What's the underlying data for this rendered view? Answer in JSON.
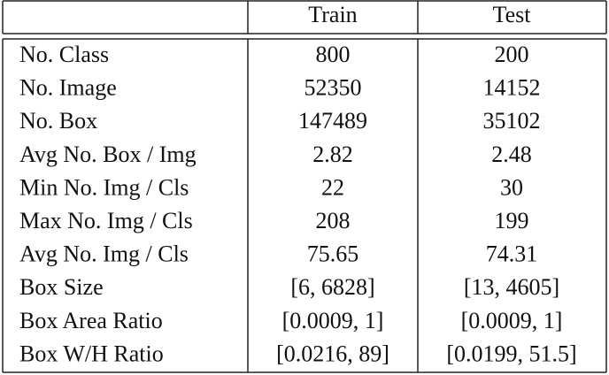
{
  "table": {
    "header": [
      "Train",
      "Test"
    ],
    "rows": [
      [
        "No. Class",
        "800",
        "200"
      ],
      [
        "No. Image",
        "52350",
        "14152"
      ],
      [
        "No. Box",
        "147489",
        "35102"
      ],
      [
        "Avg No. Box / Img",
        "2.82",
        "2.48"
      ],
      [
        "Min No. Img / Cls",
        "22",
        "30"
      ],
      [
        "Max No. Img / Cls",
        "208",
        "199"
      ],
      [
        "Avg No. Img / Cls",
        "75.65",
        "74.31"
      ],
      [
        "Box Size",
        "[6, 6828]",
        "[13, 4605]"
      ],
      [
        "Box Area Ratio",
        "[0.0009, 1]",
        "[0.0009, 1]"
      ],
      [
        "Box W/H Ratio",
        "[0.0216, 89]",
        "[0.0199, 51.5]"
      ]
    ]
  }
}
